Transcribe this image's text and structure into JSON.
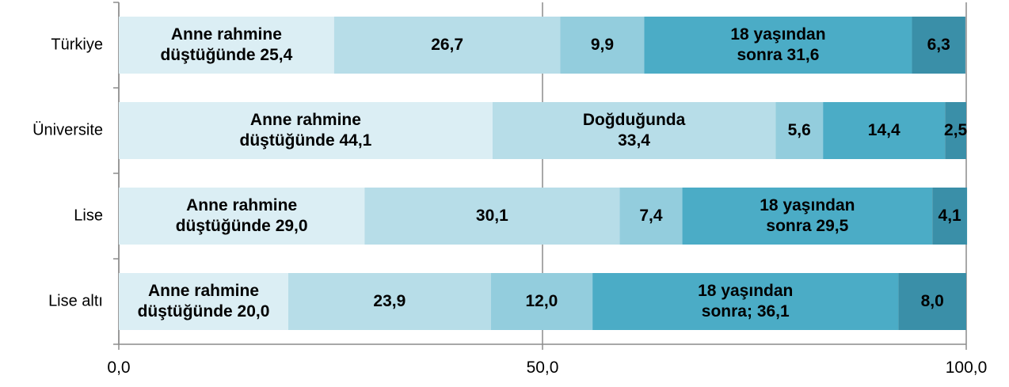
{
  "chart_data": {
    "type": "stacked-bar-horizontal",
    "categories": [
      "Türkiye",
      "Üniversite",
      "Lise",
      "Lise altı"
    ],
    "series": [
      {
        "color": "#dbeef4",
        "values": [
          25.4,
          44.1,
          29.0,
          20.0
        ],
        "value_labels": [
          "Anne rahmine\ndüştüğünde 25,4",
          "Anne rahmine\ndüştüğünde 44,1",
          "Anne rahmine\ndüştüğünde 29,0",
          "Anne rahmine\ndüştüğünde 20,0"
        ]
      },
      {
        "color": "#b7dde8",
        "values": [
          26.7,
          33.4,
          30.1,
          23.9
        ],
        "value_labels": [
          "26,7",
          "Doğduğunda\n33,4",
          "30,1",
          "23,9"
        ]
      },
      {
        "color": "#93cddd",
        "values": [
          9.9,
          5.6,
          7.4,
          12.0
        ],
        "value_labels": [
          "9,9",
          "5,6",
          "7,4",
          "12,0"
        ]
      },
      {
        "color": "#4bacc6",
        "values": [
          31.6,
          14.4,
          29.5,
          36.1
        ],
        "value_labels": [
          "18 yaşından\nsonra 31,6",
          "14,4",
          "18 yaşından\nsonra 29,5",
          "18 yaşından\nsonra; 36,1"
        ]
      },
      {
        "color": "#3a8fa8",
        "values": [
          6.3,
          2.5,
          4.1,
          8.0
        ],
        "value_labels": [
          "6,3",
          "2,5",
          "4,1",
          "8,0"
        ]
      }
    ],
    "xlim": [
      0,
      100
    ],
    "xticks": [
      {
        "value": 0,
        "label": "0,0"
      },
      {
        "value": 50,
        "label": "50,0"
      },
      {
        "value": 100,
        "label": "100,0"
      }
    ],
    "grid": true
  }
}
